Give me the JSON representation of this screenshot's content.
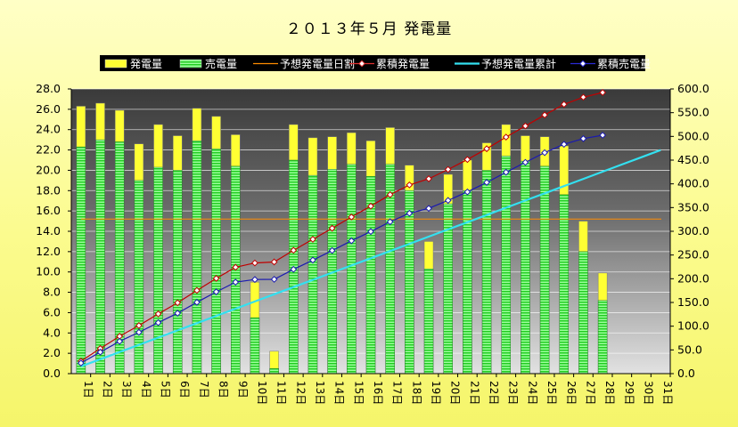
{
  "chart_data": {
    "type": "bar",
    "title": "２０１３年５月 発電量",
    "categories": [
      "1日",
      "2日",
      "3日",
      "4日",
      "5日",
      "6日",
      "7日",
      "8日",
      "9日",
      "10日",
      "11日",
      "12日",
      "13日",
      "14日",
      "15日",
      "16日",
      "17日",
      "18日",
      "19日",
      "20日",
      "21日",
      "22日",
      "23日",
      "24日",
      "25日",
      "26日",
      "27日",
      "28日",
      "29日",
      "30日",
      "31日"
    ],
    "y_left": {
      "ylim": [
        0,
        28
      ],
      "ticks": [
        "0.0",
        "2.0",
        "4.0",
        "6.0",
        "8.0",
        "10.0",
        "12.0",
        "14.0",
        "16.0",
        "18.0",
        "20.0",
        "22.0",
        "24.0",
        "26.0",
        "28.0"
      ]
    },
    "y_right": {
      "ylim": [
        0,
        600
      ],
      "ticks": [
        "0.0",
        "50.0",
        "100.0",
        "150.0",
        "200.0",
        "250.0",
        "300.0",
        "350.0",
        "400.0",
        "450.0",
        "500.0",
        "550.0",
        "600.0"
      ]
    },
    "grid": true,
    "legend_position": "top",
    "legend": [
      {
        "name": "発電量",
        "kind": "bar",
        "color": "#ffff33"
      },
      {
        "name": "売電量",
        "kind": "bar",
        "color": "#33dd33"
      },
      {
        "name": "予想発電量日割",
        "kind": "line",
        "color": "#ff8c00"
      },
      {
        "name": "累積発電量",
        "kind": "line-marker",
        "color": "#e03030"
      },
      {
        "name": "予想発電量累計",
        "kind": "line",
        "color": "#33e0f0"
      },
      {
        "name": "累積売電量",
        "kind": "line-marker",
        "color": "#2b2bd6"
      }
    ],
    "series": [
      {
        "name": "発電量",
        "axis": "left",
        "values": [
          26.3,
          26.6,
          25.9,
          22.6,
          24.5,
          23.4,
          26.1,
          25.3,
          23.5,
          9.0,
          2.2,
          24.5,
          23.2,
          23.3,
          23.7,
          22.9,
          24.2,
          20.5,
          13.0,
          19.6,
          21.0,
          22.7,
          24.5,
          23.4,
          23.3,
          22.4,
          15.0,
          9.9,
          null,
          null,
          null
        ]
      },
      {
        "name": "売電量",
        "axis": "left",
        "values": [
          22.3,
          23.0,
          22.8,
          19.0,
          20.3,
          20.0,
          22.9,
          22.1,
          20.4,
          5.5,
          0.5,
          21.0,
          19.5,
          20.1,
          20.6,
          19.4,
          20.6,
          18.0,
          10.3,
          16.7,
          18.0,
          20.0,
          21.4,
          20.9,
          20.4,
          17.6,
          12.0,
          7.2,
          null,
          null,
          null
        ]
      },
      {
        "name": "予想発電量日割",
        "axis": "left",
        "values": [
          15.2,
          15.2,
          15.2,
          15.2,
          15.2,
          15.2,
          15.2,
          15.2,
          15.2,
          15.2,
          15.2,
          15.2,
          15.2,
          15.2,
          15.2,
          15.2,
          15.2,
          15.2,
          15.2,
          15.2,
          15.2,
          15.2,
          15.2,
          15.2,
          15.2,
          15.2,
          15.2,
          15.2,
          15.2,
          15.2,
          15.2
        ]
      },
      {
        "name": "累積発電量",
        "axis": "right",
        "values": [
          26.3,
          52.9,
          78.8,
          101.4,
          125.9,
          149.3,
          175.4,
          200.7,
          224.2,
          233.2,
          235.4,
          259.9,
          283.1,
          306.4,
          330.1,
          353.0,
          377.2,
          397.7,
          410.7,
          430.3,
          451.3,
          474.0,
          498.5,
          521.9,
          545.2,
          567.6,
          582.6,
          592.5,
          null,
          null,
          null
        ]
      },
      {
        "name": "予想発電量累計",
        "axis": "right",
        "values": [
          15.2,
          30.4,
          45.6,
          60.8,
          76.0,
          91.2,
          106.4,
          121.6,
          136.8,
          152.0,
          167.2,
          182.4,
          197.6,
          212.8,
          228.0,
          243.2,
          258.4,
          273.6,
          288.8,
          304.0,
          319.2,
          334.4,
          349.6,
          364.8,
          380.0,
          395.2,
          410.4,
          425.6,
          440.8,
          456.0,
          471.2
        ]
      },
      {
        "name": "累積売電量",
        "axis": "right",
        "values": [
          22.3,
          45.3,
          68.1,
          87.1,
          107.4,
          127.4,
          150.3,
          172.4,
          192.8,
          198.3,
          198.8,
          219.8,
          239.3,
          259.4,
          280.0,
          299.4,
          320.0,
          338.0,
          348.3,
          365.0,
          383.0,
          403.0,
          424.4,
          445.3,
          465.7,
          483.3,
          495.3,
          502.5,
          null,
          null,
          null
        ]
      }
    ]
  }
}
